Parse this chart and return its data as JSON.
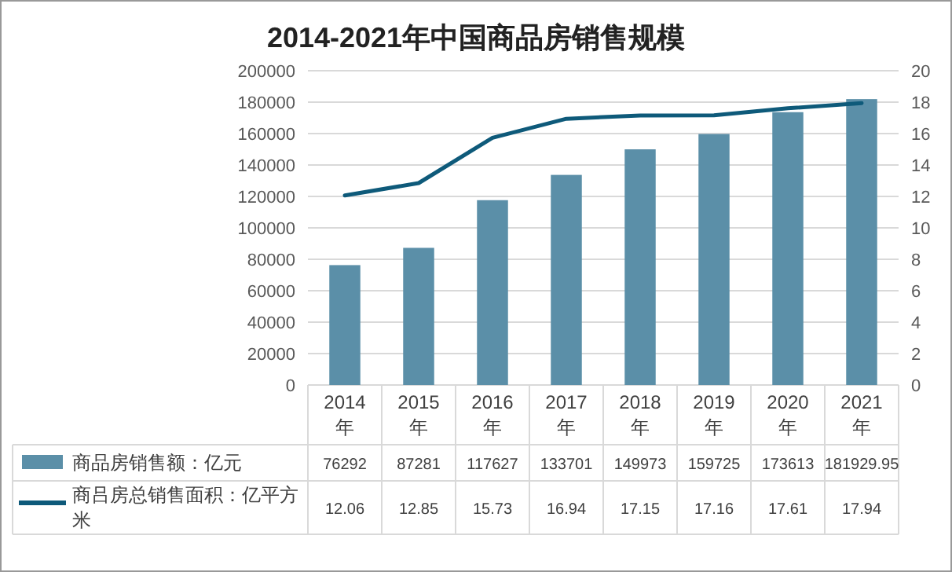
{
  "chart_data": {
    "type": "bar",
    "title": "2014-2021年中国商品房销售规模",
    "categories": [
      "2014年",
      "2015年",
      "2016年",
      "2017年",
      "2018年",
      "2019年",
      "2020年",
      "2021年"
    ],
    "series": [
      {
        "name": "商品房销售额：亿元",
        "color": "#5b8fa8",
        "values": [
          76292,
          87281,
          117627,
          133701,
          149973,
          159725,
          173613,
          181929.95
        ]
      },
      {
        "name": "商吕房总销售面积：亿平方米",
        "type": "line",
        "axis": "y2",
        "color": "#0e5a7a",
        "values": [
          12.06,
          12.85,
          15.73,
          16.94,
          17.15,
          17.16,
          17.61,
          17.94
        ]
      }
    ],
    "ylim": [
      0,
      200000
    ],
    "yticks": [
      0,
      20000,
      40000,
      60000,
      80000,
      100000,
      120000,
      140000,
      160000,
      180000,
      200000
    ],
    "y2lim": [
      0,
      20
    ],
    "y2ticks": [
      0,
      2,
      4,
      6,
      8,
      10,
      12,
      14,
      16,
      18,
      20
    ],
    "grid": "y",
    "legend": "bottom left",
    "data_labels": true,
    "marker": "none",
    "line_style": "solid"
  }
}
